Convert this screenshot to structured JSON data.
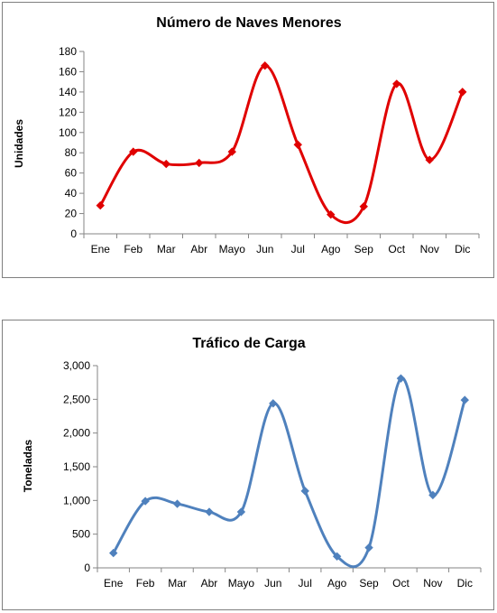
{
  "chart_data": [
    {
      "type": "line",
      "title": "Número de Naves Menores",
      "xlabel": "",
      "ylabel": "Unidades",
      "categories": [
        "Ene",
        "Feb",
        "Mar",
        "Abr",
        "Mayo",
        "Jun",
        "Jul",
        "Ago",
        "Sep",
        "Oct",
        "Nov",
        "Dic"
      ],
      "series": [
        {
          "values": [
            28,
            81,
            69,
            70,
            81,
            166,
            88,
            19,
            27,
            148,
            73,
            140
          ],
          "color": "#e00000",
          "marker": "diamond"
        }
      ],
      "ylim": [
        0,
        180
      ],
      "yticks": [
        0,
        20,
        40,
        60,
        80,
        100,
        120,
        140,
        160,
        180
      ],
      "ytick_labels": [
        "0",
        "20",
        "40",
        "60",
        "80",
        "100",
        "120",
        "140",
        "160",
        "180"
      ],
      "smooth": true,
      "grid": false,
      "legend": "none"
    },
    {
      "type": "line",
      "title": "Tráfico de Carga",
      "xlabel": "",
      "ylabel": "Toneladas",
      "categories": [
        "Ene",
        "Feb",
        "Mar",
        "Abr",
        "Mayo",
        "Jun",
        "Jul",
        "Ago",
        "Sep",
        "Oct",
        "Nov",
        "Dic"
      ],
      "series": [
        {
          "values": [
            220,
            990,
            950,
            830,
            830,
            2440,
            1140,
            170,
            300,
            2810,
            1080,
            2490
          ],
          "color": "#4f81bd",
          "marker": "diamond"
        }
      ],
      "ylim": [
        0,
        3000
      ],
      "yticks": [
        0,
        500,
        1000,
        1500,
        2000,
        2500,
        3000
      ],
      "ytick_labels": [
        "0",
        "500",
        "1,000",
        "1,500",
        "2,000",
        "2,500",
        "3,000"
      ],
      "smooth": true,
      "grid": false,
      "legend": "none"
    }
  ]
}
